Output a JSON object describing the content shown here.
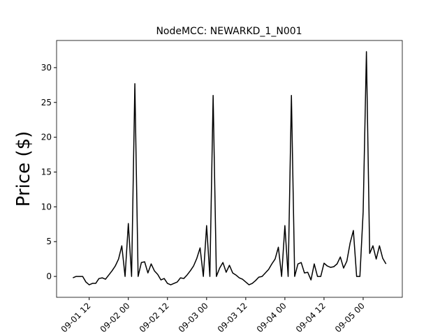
{
  "chart_data": {
    "type": "line",
    "title": "NodeMCC: NEWARKD_1_N001",
    "ylabel": "Price ($)",
    "x": [
      "09-01 07",
      "09-01 08",
      "09-01 09",
      "09-01 10",
      "09-01 11",
      "09-01 12",
      "09-01 13",
      "09-01 14",
      "09-01 15",
      "09-01 16",
      "09-01 17",
      "09-01 18",
      "09-01 19",
      "09-01 20",
      "09-01 21",
      "09-01 22",
      "09-01 23",
      "09-02 00",
      "09-02 01",
      "09-02 02",
      "09-02 03",
      "09-02 04",
      "09-02 05",
      "09-02 06",
      "09-02 07",
      "09-02 08",
      "09-02 09",
      "09-02 10",
      "09-02 11",
      "09-02 12",
      "09-02 13",
      "09-02 14",
      "09-02 15",
      "09-02 16",
      "09-02 17",
      "09-02 18",
      "09-02 19",
      "09-02 20",
      "09-02 21",
      "09-02 22",
      "09-02 23",
      "09-03 00",
      "09-03 01",
      "09-03 02",
      "09-03 03",
      "09-03 04",
      "09-03 05",
      "09-03 06",
      "09-03 07",
      "09-03 08",
      "09-03 09",
      "09-03 10",
      "09-03 11",
      "09-03 12",
      "09-03 13",
      "09-03 14",
      "09-03 15",
      "09-03 16",
      "09-03 17",
      "09-03 18",
      "09-03 19",
      "09-03 20",
      "09-03 21",
      "09-03 22",
      "09-03 23",
      "09-04 00",
      "09-04 01",
      "09-04 02",
      "09-04 03",
      "09-04 04",
      "09-04 05",
      "09-04 06",
      "09-04 07",
      "09-04 08",
      "09-04 09",
      "09-04 10",
      "09-04 11",
      "09-04 12",
      "09-04 13",
      "09-04 14",
      "09-04 15",
      "09-04 16",
      "09-04 17",
      "09-04 18",
      "09-04 19",
      "09-04 20",
      "09-04 21",
      "09-04 22",
      "09-04 23",
      "09-05 00",
      "09-05 01",
      "09-05 02",
      "09-05 03",
      "09-05 04",
      "09-05 05",
      "09-05 06",
      "09-05 07"
    ],
    "series": [
      {
        "name": "NEWARKD_1_N001",
        "color": "#000000",
        "values": [
          -0.2,
          0,
          0,
          0,
          -0.8,
          -1.2,
          -1.0,
          -1.0,
          -0.3,
          -0.2,
          -0.4,
          0.2,
          0.8,
          1.5,
          2.5,
          4.4,
          0.0,
          7.6,
          0,
          27.7,
          0,
          2.0,
          2.1,
          0.5,
          1.8,
          0.8,
          0.3,
          -0.5,
          -0.3,
          -1.0,
          -1.2,
          -1.0,
          -0.8,
          -0.2,
          -0.3,
          0.2,
          0.8,
          1.5,
          2.6,
          4.1,
          0.0,
          7.3,
          0,
          26.0,
          0,
          1.2,
          2.0,
          0.6,
          1.6,
          0.5,
          0.2,
          -0.2,
          -0.4,
          -0.8,
          -1.2,
          -1.0,
          -0.6,
          -0.1,
          0.0,
          0.5,
          1.0,
          1.8,
          2.5,
          4.2,
          0.0,
          7.3,
          0,
          26.0,
          0,
          1.8,
          2.0,
          0.5,
          0.6,
          -0.5,
          1.8,
          0,
          0,
          1.9,
          1.5,
          1.3,
          1.4,
          1.8,
          2.8,
          1.2,
          2.2,
          4.8,
          6.6,
          0,
          0,
          9.3,
          32.3,
          3.3,
          4.4,
          2.5,
          4.4,
          2.6,
          1.8
        ]
      }
    ],
    "xlim": [
      "09-01 02",
      "09-05 12"
    ],
    "xticks": [
      "09-01 12",
      "09-02 00",
      "09-02 12",
      "09-03 00",
      "09-03 12",
      "09-04 00",
      "09-04 12",
      "09-05 00"
    ],
    "ylim": [
      -3.0,
      33.9
    ],
    "yticks": [
      0,
      5,
      10,
      15,
      20,
      25,
      30
    ]
  }
}
